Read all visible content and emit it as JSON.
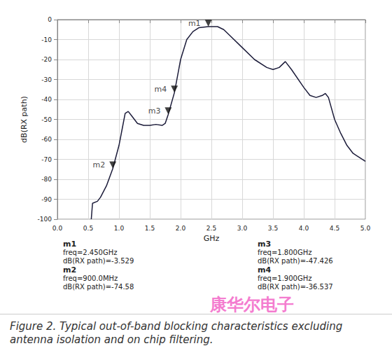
{
  "chart_data": {
    "type": "line",
    "x_label": "GHz",
    "y_label": "dB(RX path)",
    "color": "#1c1c3a",
    "x": [
      0.55,
      0.57,
      0.65,
      0.7,
      0.8,
      0.9,
      1.0,
      1.05,
      1.1,
      1.15,
      1.2,
      1.3,
      1.4,
      1.5,
      1.6,
      1.7,
      1.75,
      1.8,
      1.9,
      2.0,
      2.1,
      2.2,
      2.3,
      2.45,
      2.6,
      2.7,
      2.8,
      3.0,
      3.2,
      3.4,
      3.5,
      3.6,
      3.7,
      3.8,
      4.0,
      4.1,
      4.2,
      4.3,
      4.35,
      4.4,
      4.5,
      4.6,
      4.7,
      4.8,
      4.9,
      5.0
    ],
    "values": [
      -100,
      -92,
      -91,
      -89,
      -83,
      -74.58,
      -63,
      -55,
      -47,
      -46,
      -48,
      -52,
      -53,
      -53,
      -52.5,
      -53,
      -52,
      -47.426,
      -36.537,
      -20,
      -10,
      -6,
      -4,
      -3.529,
      -3.5,
      -5,
      -8,
      -14,
      -20,
      -24,
      -25,
      -24,
      -21,
      -25,
      -34,
      -38,
      -39,
      -38,
      -37,
      -39,
      -50,
      -57,
      -63,
      -67,
      -69,
      -71
    ],
    "xlim": [
      0,
      5
    ],
    "ylim": [
      -100,
      0
    ],
    "xticks": [
      {
        "value": 0,
        "label": "0.0"
      },
      {
        "value": 0.5,
        "label": "0.5"
      },
      {
        "value": 1,
        "label": "1.0"
      },
      {
        "value": 1.5,
        "label": "1.5"
      },
      {
        "value": 2,
        "label": "2.0"
      },
      {
        "value": 2.5,
        "label": "2.5"
      },
      {
        "value": 3,
        "label": "3.0"
      },
      {
        "value": 3.5,
        "label": "3.5"
      },
      {
        "value": 4,
        "label": "4.0"
      },
      {
        "value": 4.5,
        "label": "4.5"
      },
      {
        "value": 5,
        "label": "5.0"
      }
    ],
    "yticks": [
      -100,
      -90,
      -80,
      -70,
      -60,
      -50,
      -40,
      -30,
      -20,
      -10,
      0
    ],
    "grid": true,
    "markers": [
      {
        "name": "m1",
        "x": 2.45,
        "y": -3.529,
        "freq_label": "freq=2.450GHz",
        "value_label": "dB(RX path)=-3.529"
      },
      {
        "name": "m2",
        "x": 0.9,
        "y": -74.58,
        "freq_label": "freq=900.0MHz",
        "value_label": "dB(RX path)=-74.58"
      },
      {
        "name": "m3",
        "x": 1.8,
        "y": -47.426,
        "freq_label": "freq=1.800GHz",
        "value_label": "dB(RX path)=-47.426"
      },
      {
        "name": "m4",
        "x": 1.9,
        "y": -36.537,
        "freq_label": "freq=1.900GHz",
        "value_label": "dB(RX path)=-36.537"
      }
    ],
    "caption": "Figure 2. Typical out-of-band blocking characteristics excluding antenna isolation and on chip filtering.",
    "watermark": "康华尔电子"
  }
}
